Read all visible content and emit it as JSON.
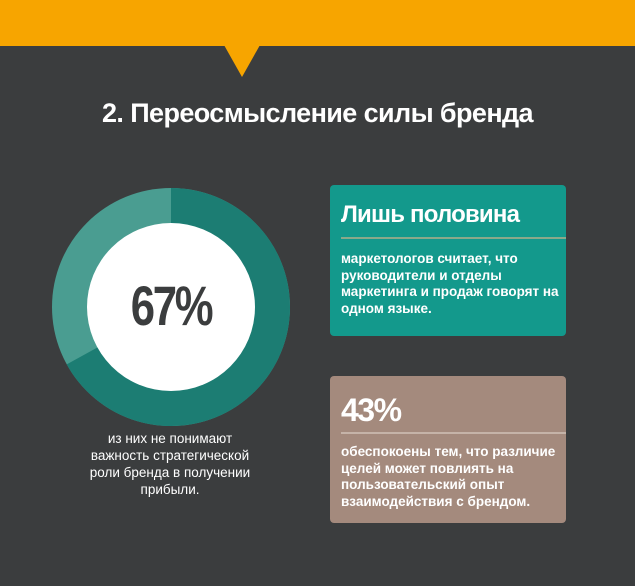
{
  "header": {
    "accent_color": "#f7a500"
  },
  "section": {
    "title": "2. Переосмысление силы бренда"
  },
  "donut": {
    "value_text": "67%",
    "fraction": 0.67,
    "caption": "из них не понимают важность стратегической роли бренда в получении прибыли.",
    "colors": {
      "filled": "#1c7d73",
      "remaining": "#4a9d91",
      "center": "#ffffff"
    }
  },
  "cards": {
    "half": {
      "heading": "Лишь половина",
      "text": "маркетологов считает, что руководители и отделы маркетинга и продаж говорят на одном языке.",
      "color": "#13998c"
    },
    "percent43": {
      "heading": "43%",
      "text": "обеспокоены тем, что различие целей может повлиять на пользовательский опыт взаимодействия с брендом.",
      "color": "#a48a7d"
    }
  },
  "colors": {
    "background": "#3b3d3e"
  }
}
